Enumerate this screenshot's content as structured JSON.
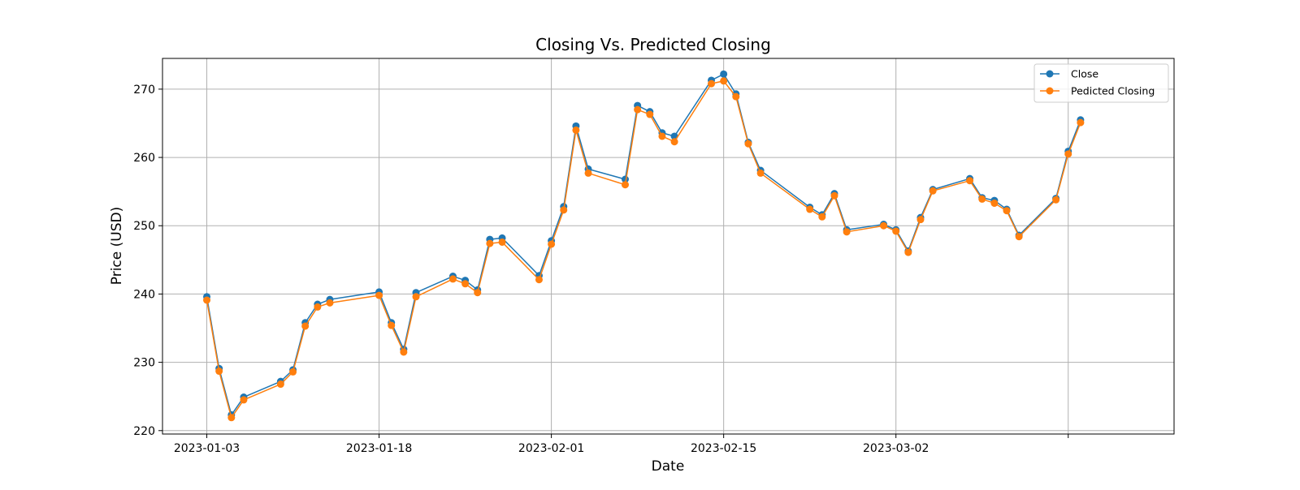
{
  "chart_data": {
    "type": "line",
    "title": "Closing Vs. Predicted Closing",
    "xlabel": "Date",
    "ylabel": "Price (USD)",
    "x_tick_labels": [
      "2023-01-03",
      "2023-01-18",
      "2023-02-01",
      "2023-02-15",
      "2023-03-02",
      ""
    ],
    "y_tick_labels": [
      "220",
      "230",
      "240",
      "250",
      "260",
      "270"
    ],
    "ylim": [
      219.5,
      274.5
    ],
    "grid": true,
    "legend_position": "top-right",
    "x": [
      "2023-01-03",
      "2023-01-04",
      "2023-01-05",
      "2023-01-06",
      "2023-01-09",
      "2023-01-10",
      "2023-01-11",
      "2023-01-12",
      "2023-01-13",
      "2023-01-17",
      "2023-01-18",
      "2023-01-19",
      "2023-01-20",
      "2023-01-23",
      "2023-01-24",
      "2023-01-25",
      "2023-01-26",
      "2023-01-27",
      "2023-01-30",
      "2023-01-31",
      "2023-02-01",
      "2023-02-02",
      "2023-02-03",
      "2023-02-06",
      "2023-02-07",
      "2023-02-08",
      "2023-02-09",
      "2023-02-10",
      "2023-02-13",
      "2023-02-14",
      "2023-02-15",
      "2023-02-16",
      "2023-02-17",
      "2023-02-21",
      "2023-02-22",
      "2023-02-23",
      "2023-02-24",
      "2023-02-27",
      "2023-02-28",
      "2023-03-01",
      "2023-03-02",
      "2023-03-03",
      "2023-03-06",
      "2023-03-07",
      "2023-03-08",
      "2023-03-09",
      "2023-03-10",
      "2023-03-13",
      "2023-03-14",
      "2023-03-15"
    ],
    "series": [
      {
        "name": "Close",
        "color": "#1f77b4",
        "values": [
          239.6,
          229.1,
          222.3,
          224.9,
          227.2,
          228.9,
          235.8,
          238.5,
          239.2,
          240.3,
          235.8,
          231.9,
          240.2,
          242.6,
          242.0,
          240.6,
          248.0,
          248.2,
          242.7,
          247.8,
          252.8,
          264.6,
          258.3,
          256.8,
          267.6,
          266.7,
          263.6,
          263.1,
          271.3,
          272.2,
          269.3,
          262.2,
          258.1,
          252.7,
          251.6,
          254.7,
          249.4,
          250.2,
          249.4,
          246.3,
          251.2,
          255.3,
          256.9,
          254.1,
          253.7,
          252.4,
          248.6,
          254.0,
          260.9,
          265.5
        ]
      },
      {
        "name": "Pedicted Closing",
        "color": "#ff7f0e",
        "values": [
          239.1,
          228.7,
          221.9,
          224.5,
          226.8,
          228.6,
          235.3,
          238.1,
          238.7,
          239.8,
          235.4,
          231.5,
          239.6,
          242.2,
          241.5,
          240.2,
          247.4,
          247.6,
          242.1,
          247.3,
          252.3,
          264.0,
          257.7,
          256.0,
          267.0,
          266.3,
          263.1,
          262.3,
          270.8,
          271.2,
          268.9,
          262.0,
          257.7,
          252.4,
          251.3,
          254.4,
          249.1,
          250.0,
          249.2,
          246.1,
          250.9,
          255.1,
          256.6,
          253.9,
          253.3,
          252.2,
          248.4,
          253.8,
          260.5,
          265.1
        ]
      }
    ]
  }
}
